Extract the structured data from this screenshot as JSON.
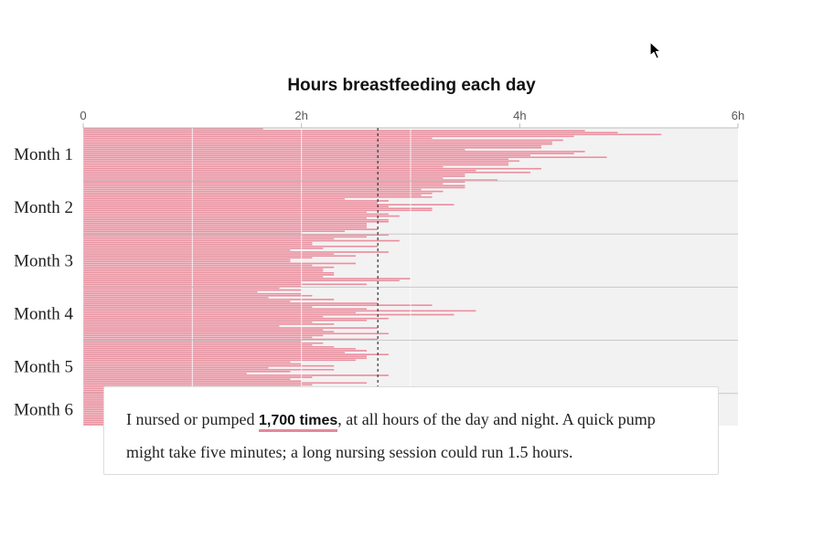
{
  "chart_data": {
    "type": "bar",
    "orientation": "horizontal",
    "title": "Hours breastfeeding each day",
    "x_ticks": [
      "0",
      "2h",
      "4h",
      "6h"
    ],
    "xlim": [
      0,
      6
    ],
    "units": "hours",
    "reference_line_hours": 2.7,
    "groups": [
      {
        "label": "Month 1",
        "start_day": 0
      },
      {
        "label": "Month 2",
        "start_day": 28
      },
      {
        "label": "Month 3",
        "start_day": 56
      },
      {
        "label": "Month 4",
        "start_day": 84
      },
      {
        "label": "Month 5",
        "start_day": 112
      },
      {
        "label": "Month 6",
        "start_day": 140
      }
    ],
    "values_hours": [
      1.65,
      4.6,
      4.9,
      5.3,
      4.5,
      3.2,
      4.4,
      4.3,
      4.3,
      4.2,
      4.2,
      3.5,
      4.6,
      4.5,
      4.1,
      4.8,
      3.9,
      4.0,
      3.9,
      3.9,
      3.3,
      4.2,
      3.6,
      4.1,
      3.5,
      3.5,
      3.3,
      3.8,
      3.5,
      3.3,
      3.5,
      3.5,
      3.1,
      3.3,
      3.2,
      3.1,
      3.2,
      2.4,
      2.8,
      2.7,
      3.4,
      2.8,
      3.2,
      3.2,
      2.6,
      2.8,
      2.9,
      2.6,
      2.8,
      2.8,
      2.6,
      2.6,
      2.6,
      2.7,
      2.4,
      2.0,
      2.8,
      2.6,
      2.3,
      2.9,
      2.1,
      2.1,
      2.7,
      2.2,
      1.9,
      2.8,
      2.3,
      2.5,
      2.1,
      1.9,
      1.9,
      2.5,
      2.1,
      2.3,
      2.2,
      2.2,
      2.3,
      2.3,
      2.2,
      3.0,
      2.9,
      2.0,
      2.6,
      2.0,
      1.8,
      2.0,
      1.6,
      2.0,
      2.1,
      1.7,
      2.3,
      1.9,
      2.7,
      3.2,
      2.1,
      2.6,
      3.6,
      2.5,
      3.4,
      2.2,
      2.8,
      2.6,
      2.1,
      2.3,
      1.8,
      2.7,
      2.2,
      2.3,
      2.8,
      2.2,
      2.1,
      2.7,
      2.0,
      2.2,
      2.1,
      2.3,
      2.5,
      2.6,
      2.4,
      2.8,
      2.6,
      2.6,
      2.5,
      1.9,
      2.0,
      2.3,
      1.7,
      2.3,
      1.9,
      1.5,
      2.8,
      2.1,
      1.9,
      2.0,
      2.6,
      2.1,
      2.0,
      2.4,
      1.6,
      1.4,
      2.4,
      1.9,
      2.2,
      1.9,
      1.8,
      2.3,
      2.1,
      1.7,
      2.2,
      2.1,
      2.6,
      2.0,
      2.3,
      1.9,
      1.8,
      2.0,
      1.9
    ]
  },
  "callout": {
    "before": "I nursed or pumped ",
    "highlight": "1,700 times",
    "after": ", at all hours of the day and night. A quick pump might take five minutes; a long nursing session could run 1.5 hours."
  },
  "colors": {
    "bar": "#e8909f",
    "bar_outline": "#ffffff",
    "background_panel": "#f2f2f2",
    "gridline": "#ffffff",
    "separator": "#c9c9c9",
    "reference_line": "#333333",
    "tick_text": "#555555",
    "month_label": "#222222"
  },
  "icons": {
    "cursor": "mouse-pointer-icon"
  }
}
